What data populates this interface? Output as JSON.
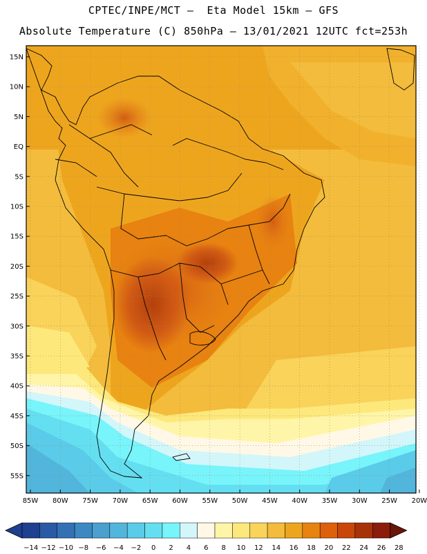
{
  "title_line1": "CPTEC/INPE/MCT –  Eta Model 15km – GFS",
  "title_line2": "Absolute Temperature (C) 850hPa – 13/01/2021 12UTC fct=253h",
  "lat_labels": [
    "15N",
    "10N",
    "5N",
    "EQ",
    "5S",
    "10S",
    "15S",
    "20S",
    "25S",
    "30S",
    "35S",
    "40S",
    "45S",
    "50S",
    "55S"
  ],
  "lon_labels": [
    "85W",
    "80W",
    "75W",
    "70W",
    "65W",
    "60W",
    "55W",
    "50W",
    "45W",
    "40W",
    "35W",
    "30W",
    "25W",
    "20W"
  ],
  "colorbar": {
    "labels": [
      "-14",
      "-12",
      "-10",
      "-8",
      "-6",
      "-4",
      "-2",
      "0",
      "2",
      "4",
      "6",
      "8",
      "10",
      "12",
      "14",
      "16",
      "18",
      "20",
      "22",
      "24",
      "26",
      "28"
    ],
    "colors": [
      "#1f3f8f",
      "#2a5aa5",
      "#3272b4",
      "#3c88c2",
      "#4aa0cf",
      "#52b5dc",
      "#5acbe8",
      "#64dff1",
      "#78f4fb",
      "#d2f6fa",
      "#fff8e6",
      "#fff5a8",
      "#fde87c",
      "#f9d35a",
      "#f3bc3c",
      "#eea51e",
      "#e88210",
      "#dd600a",
      "#c94608",
      "#a83208",
      "#8a1e0a",
      "#6b1408"
    ]
  }
}
